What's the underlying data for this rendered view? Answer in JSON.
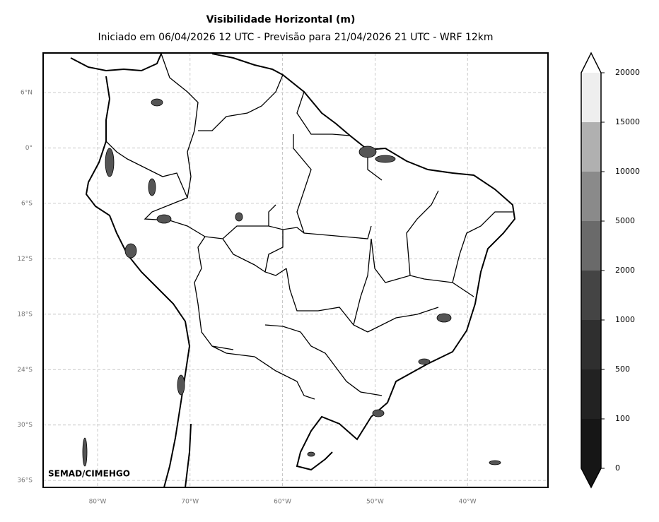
{
  "title": "Visibilidade Horizontal (m)",
  "subtitle": "Iniciado em 06/04/2026 12 UTC - Previsão para 21/04/2026 21 UTC - WRF 12km",
  "credit": "SEMAD/CIMEHGO",
  "map": {
    "lon_labels": [
      "80°W",
      "70°W",
      "60°W",
      "50°W",
      "40°W"
    ],
    "lat_labels": [
      "6°N",
      "0°",
      "6°S",
      "12°S",
      "18°S",
      "24°S",
      "30°S",
      "36°S"
    ]
  },
  "colorbar": {
    "levels": [
      "0",
      "100",
      "500",
      "1000",
      "2000",
      "5000",
      "10000",
      "15000",
      "20000"
    ],
    "colors": [
      "#161616",
      "#222222",
      "#2f2f2f",
      "#444444",
      "#6a6a6a",
      "#8a8a8a",
      "#b0b0b0",
      "#eeeeee"
    ],
    "under_color": "#161616",
    "over_color": "#ffffff"
  }
}
